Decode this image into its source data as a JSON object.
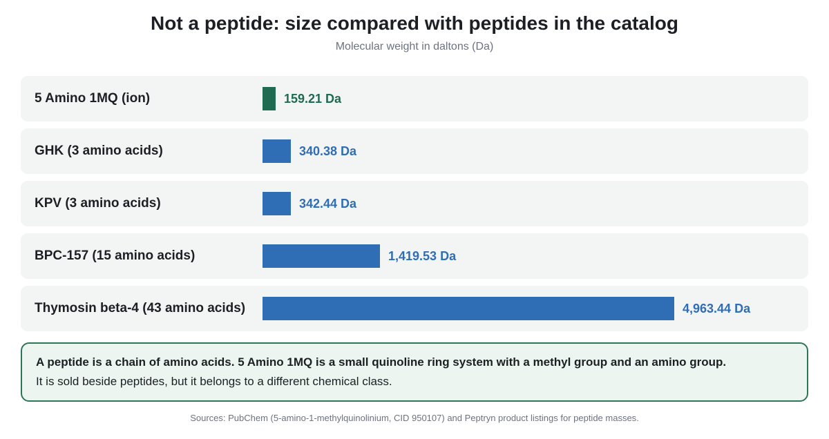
{
  "header": {
    "title": "Not a peptide: size compared with peptides in the catalog",
    "subtitle": "Molecular weight in daltons (Da)"
  },
  "colors": {
    "highlight": "#1f6b52",
    "peptide": "#2f6db5",
    "row_background": "#f3f5f4",
    "note_border": "#2e7555",
    "note_background": "#edf5f1"
  },
  "chart_data": {
    "type": "bar",
    "orientation": "horizontal",
    "title": "Not a peptide: size compared with peptides in the catalog",
    "subtitle": "Molecular weight in daltons (Da)",
    "xlabel": "",
    "ylabel": "",
    "unit": "Da",
    "categories": [
      "5 Amino 1MQ (ion)",
      "GHK (3 amino acids)",
      "KPV (3 amino acids)",
      "BPC-157 (15 amino acids)",
      "Thymosin beta-4 (43 amino acids)"
    ],
    "values": [
      159.21,
      340.38,
      342.44,
      1419.53,
      4963.44
    ],
    "value_labels": [
      "159.21 Da",
      "340.38 Da",
      "342.44 Da",
      "1,419.53 Da",
      "4,963.44 Da"
    ],
    "highlight_index": 0,
    "grid": false,
    "legend": "none"
  },
  "note": {
    "line1": "A peptide is a chain of amino acids. 5 Amino 1MQ is a small quinoline ring system with a methyl group and an amino group.",
    "line2": "It is sold beside peptides, but it belongs to a different chemical class."
  },
  "footer": {
    "sources": "Sources: PubChem (5-amino-1-methylquinolinium, CID 950107) and Peptryn product listings for peptide masses."
  }
}
